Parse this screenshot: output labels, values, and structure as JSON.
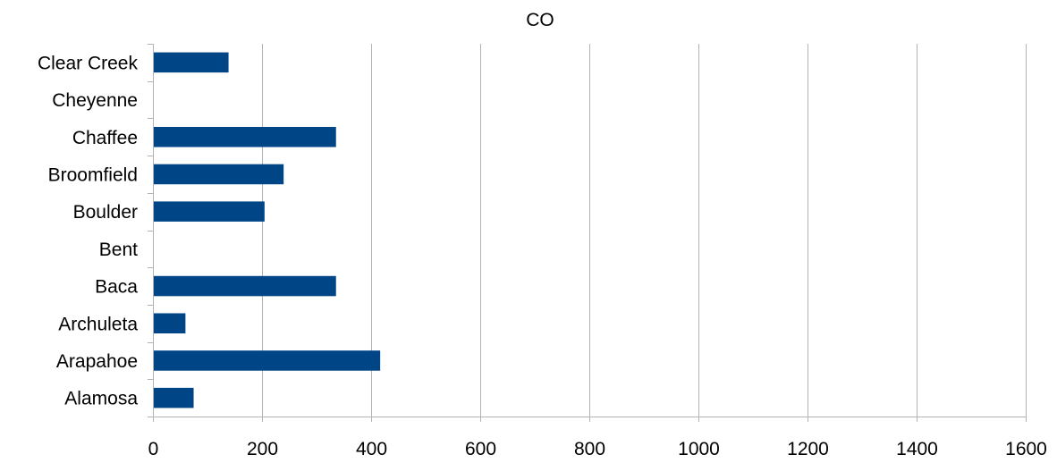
{
  "chart_data": {
    "type": "bar",
    "orientation": "horizontal",
    "title": "CO",
    "xlabel": "",
    "ylabel": "",
    "categories": [
      "Alamosa",
      "Arapahoe",
      "Archuleta",
      "Baca",
      "Bent",
      "Boulder",
      "Broomfield",
      "Chaffee",
      "Cheyenne",
      "Clear Creek"
    ],
    "values": [
      73,
      415,
      58,
      334,
      0,
      203,
      238,
      334,
      0,
      137
    ],
    "xlim": [
      0,
      1600
    ],
    "xticks": [
      0,
      200,
      400,
      600,
      800,
      1000,
      1200,
      1400,
      1600
    ],
    "grid": "vertical",
    "legend": "none",
    "bar_color": "#004586"
  }
}
